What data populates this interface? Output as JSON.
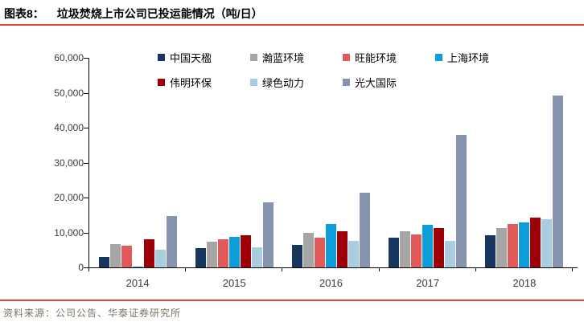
{
  "header": {
    "figure_label": "图表8：",
    "title": "垃圾焚烧上市公司已投运能情况（吨/日）"
  },
  "footer": {
    "source": "资料来源：公司公告、华泰证券研究所"
  },
  "accent": {
    "rule_color": "#e2492f",
    "axis_color": "#000000",
    "label_color": "#3b3b3b",
    "source_color": "#7e7365"
  },
  "chart_data": {
    "type": "bar",
    "title": "垃圾焚烧上市公司已投运能情况（吨/日）",
    "categories": [
      "2014",
      "2015",
      "2016",
      "2017",
      "2018"
    ],
    "series": [
      {
        "name": "中国天楹",
        "color": "#17375e",
        "values": [
          3000,
          5600,
          6400,
          8400,
          9200
        ]
      },
      {
        "name": "瀚蓝环境",
        "color": "#a6a6a6",
        "values": [
          6700,
          7400,
          9800,
          10400,
          11300
        ]
      },
      {
        "name": "旺能环境",
        "color": "#e05a5a",
        "values": [
          6300,
          8000,
          8400,
          9400,
          12300
        ]
      },
      {
        "name": "上海环境",
        "color": "#0c9eda",
        "values": [
          300,
          8700,
          12300,
          12200,
          12800
        ]
      },
      {
        "name": "伟明环保",
        "color": "#9c0006",
        "values": [
          8100,
          9100,
          10300,
          11300,
          14300
        ]
      },
      {
        "name": "绿色动力",
        "color": "#a9ccdf",
        "values": [
          5100,
          5800,
          7700,
          7700,
          13900
        ]
      },
      {
        "name": "光大国际",
        "color": "#8794b0",
        "values": [
          14700,
          18600,
          21300,
          37900,
          49300
        ]
      }
    ],
    "xlabel": "",
    "ylabel": "",
    "ylim": [
      0,
      60000
    ],
    "ytick_step": 10000,
    "ytick_labels": [
      "0",
      "10,000",
      "20,000",
      "30,000",
      "40,000",
      "50,000",
      "60,000"
    ],
    "grid": false,
    "legend_position": "top",
    "legend_rows": [
      [
        0,
        1,
        2,
        3
      ],
      [
        4,
        5,
        6
      ]
    ]
  }
}
